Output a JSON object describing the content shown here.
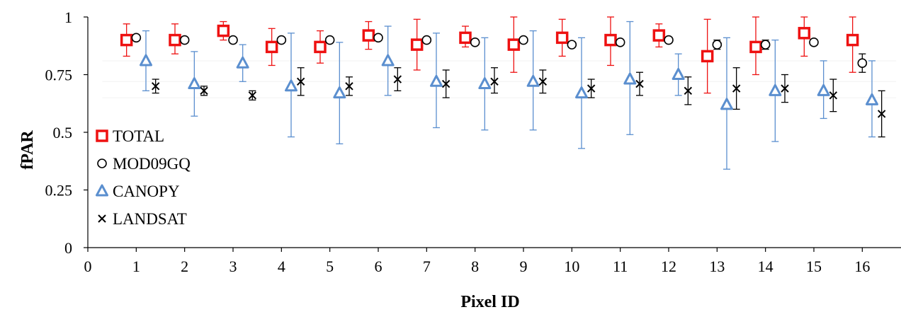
{
  "chart_data": {
    "type": "scatter",
    "xlabel": "Pixel ID",
    "ylabel": "fPAR",
    "xlim": [
      0,
      16.8
    ],
    "ylim": [
      0,
      1
    ],
    "xticks": [
      "0",
      "1",
      "2",
      "3",
      "4",
      "5",
      "6",
      "7",
      "8",
      "9",
      "10",
      "11",
      "12",
      "13",
      "14",
      "15",
      "16"
    ],
    "yticks": [
      "0",
      "0.25",
      "0.5",
      "0.75",
      "1"
    ],
    "grid": false,
    "legend_position": "lower-left",
    "series": [
      {
        "name": "TOTAL",
        "marker": "square",
        "color": "#ee1111",
        "offset": -0.2,
        "values": [
          0.9,
          0.9,
          0.94,
          0.87,
          0.87,
          0.92,
          0.88,
          0.91,
          0.88,
          0.91,
          0.9,
          0.92,
          0.83,
          0.87,
          0.93,
          0.9
        ],
        "err_low": [
          0.07,
          0.06,
          0.04,
          0.08,
          0.07,
          0.06,
          0.11,
          0.04,
          0.12,
          0.08,
          0.11,
          0.05,
          0.16,
          0.12,
          0.1,
          0.14
        ],
        "err_high": [
          0.07,
          0.07,
          0.04,
          0.08,
          0.07,
          0.06,
          0.11,
          0.05,
          0.12,
          0.08,
          0.11,
          0.05,
          0.16,
          0.13,
          0.1,
          0.14
        ]
      },
      {
        "name": "MOD09GQ",
        "marker": "circle",
        "color": "#000000",
        "offset": 0.0,
        "values": [
          0.91,
          0.9,
          0.9,
          0.9,
          0.9,
          0.91,
          0.9,
          0.89,
          0.9,
          0.88,
          0.89,
          0.9,
          0.88,
          0.88,
          0.89,
          0.8
        ],
        "err_low": [
          0.01,
          0.01,
          0.01,
          0.01,
          0.01,
          0.01,
          0.01,
          0.01,
          0.01,
          0.01,
          0.01,
          0.01,
          0.02,
          0.02,
          0.01,
          0.04
        ],
        "err_high": [
          0.01,
          0.01,
          0.01,
          0.01,
          0.01,
          0.01,
          0.01,
          0.01,
          0.01,
          0.01,
          0.01,
          0.01,
          0.02,
          0.02,
          0.01,
          0.04
        ]
      },
      {
        "name": "CANOPY",
        "marker": "triangle",
        "color": "#5b8fcf",
        "offset": 0.2,
        "values": [
          0.81,
          0.71,
          0.8,
          0.7,
          0.67,
          0.81,
          0.72,
          0.71,
          0.72,
          0.67,
          0.73,
          0.75,
          0.62,
          0.68,
          0.68,
          0.64
        ],
        "err_low": [
          0.13,
          0.14,
          0.08,
          0.22,
          0.22,
          0.15,
          0.2,
          0.2,
          0.21,
          0.24,
          0.24,
          0.09,
          0.28,
          0.22,
          0.12,
          0.16
        ],
        "err_high": [
          0.13,
          0.14,
          0.08,
          0.23,
          0.22,
          0.15,
          0.21,
          0.2,
          0.22,
          0.24,
          0.25,
          0.09,
          0.29,
          0.22,
          0.13,
          0.17
        ]
      },
      {
        "name": "LANDSAT",
        "marker": "x",
        "color": "#000000",
        "offset": 0.4,
        "values": [
          0.7,
          0.68,
          0.66,
          0.72,
          0.7,
          0.73,
          0.71,
          0.72,
          0.72,
          0.69,
          0.71,
          0.68,
          0.69,
          0.69,
          0.66,
          0.58
        ],
        "err_low": [
          0.03,
          0.02,
          0.02,
          0.06,
          0.04,
          0.05,
          0.06,
          0.05,
          0.05,
          0.04,
          0.05,
          0.06,
          0.09,
          0.06,
          0.07,
          0.1
        ],
        "err_high": [
          0.03,
          0.02,
          0.02,
          0.06,
          0.04,
          0.05,
          0.06,
          0.06,
          0.05,
          0.04,
          0.05,
          0.06,
          0.09,
          0.06,
          0.07,
          0.1
        ]
      }
    ]
  }
}
